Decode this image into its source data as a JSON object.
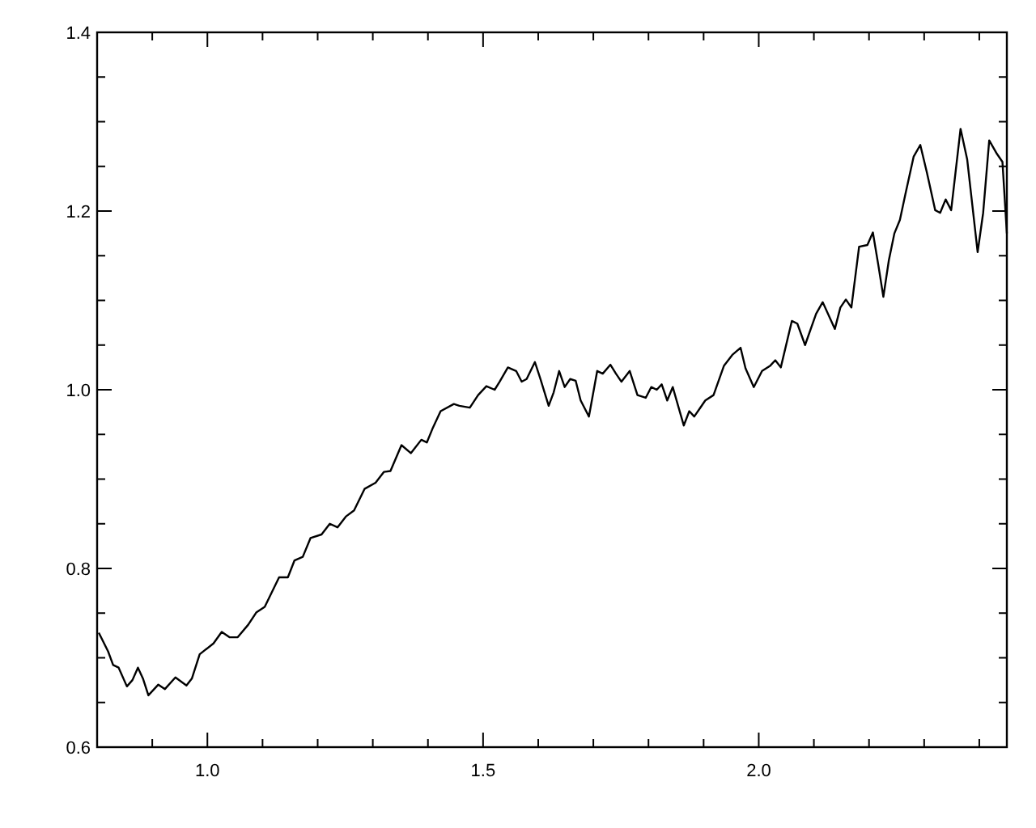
{
  "chart_data": {
    "type": "line",
    "xlim": [
      0.8,
      2.45
    ],
    "ylim": [
      0.6,
      1.4
    ],
    "xticks": [
      {
        "value": 0.9,
        "label": null
      },
      {
        "value": 1,
        "label": "1.0"
      },
      {
        "value": 1.1,
        "label": null
      },
      {
        "value": 1.2,
        "label": null
      },
      {
        "value": 1.3,
        "label": null
      },
      {
        "value": 1.4,
        "label": null
      },
      {
        "value": 1.5,
        "label": "1.5"
      },
      {
        "value": 1.6,
        "label": null
      },
      {
        "value": 1.7,
        "label": null
      },
      {
        "value": 1.8,
        "label": null
      },
      {
        "value": 1.9,
        "label": null
      },
      {
        "value": 2,
        "label": "2.0"
      },
      {
        "value": 2.1,
        "label": null
      },
      {
        "value": 2.2,
        "label": null
      },
      {
        "value": 2.3,
        "label": null
      },
      {
        "value": 2.4,
        "label": null
      }
    ],
    "yticks": [
      {
        "value": 0.6,
        "label": "0.6"
      },
      {
        "value": 0.65,
        "label": null
      },
      {
        "value": 0.7,
        "label": null
      },
      {
        "value": 0.75,
        "label": null
      },
      {
        "value": 0.8,
        "label": "0.8"
      },
      {
        "value": 0.85,
        "label": null
      },
      {
        "value": 0.9,
        "label": null
      },
      {
        "value": 0.95,
        "label": null
      },
      {
        "value": 1,
        "label": "1.0"
      },
      {
        "value": 1.05,
        "label": null
      },
      {
        "value": 1.1,
        "label": null
      },
      {
        "value": 1.15,
        "label": null
      },
      {
        "value": 1.2,
        "label": "1.2"
      },
      {
        "value": 1.25,
        "label": null
      },
      {
        "value": 1.3,
        "label": null
      },
      {
        "value": 1.35,
        "label": null
      },
      {
        "value": 1.4,
        "label": "1.4"
      }
    ],
    "grid": false,
    "marker": "none",
    "line_style": "solid",
    "series": [
      {
        "color": "#000000",
        "x": [
          0.803,
          0.82,
          0.829,
          0.839,
          0.854,
          0.864,
          0.874,
          0.883,
          0.893,
          0.911,
          0.923,
          0.942,
          0.962,
          0.972,
          0.986,
          1.011,
          1.026,
          1.04,
          1.055,
          1.074,
          1.089,
          1.104,
          1.13,
          1.146,
          1.158,
          1.173,
          1.187,
          1.207,
          1.222,
          1.236,
          1.251,
          1.266,
          1.285,
          1.305,
          1.32,
          1.332,
          1.352,
          1.369,
          1.388,
          1.398,
          1.408,
          1.423,
          1.447,
          1.457,
          1.476,
          1.491,
          1.506,
          1.521,
          1.53,
          1.545,
          1.56,
          1.57,
          1.579,
          1.594,
          1.604,
          1.619,
          1.628,
          1.638,
          1.648,
          1.658,
          1.668,
          1.677,
          1.692,
          1.707,
          1.717,
          1.731,
          1.741,
          1.751,
          1.766,
          1.78,
          1.795,
          1.805,
          1.815,
          1.824,
          1.834,
          1.844,
          1.864,
          1.874,
          1.883,
          1.893,
          1.903,
          1.918,
          1.937,
          1.952,
          1.967,
          1.976,
          1.991,
          2.006,
          2.021,
          2.03,
          2.04,
          2.06,
          2.07,
          2.084,
          2.104,
          2.116,
          2.138,
          2.148,
          2.158,
          2.168,
          2.182,
          2.197,
          2.207,
          2.217,
          2.226,
          2.236,
          2.246,
          2.256,
          2.266,
          2.281,
          2.293,
          2.305,
          2.32,
          2.329,
          2.339,
          2.349,
          2.366,
          2.378,
          2.397,
          2.407,
          2.418,
          2.432,
          2.442,
          2.45
        ],
        "values": [
          0.728,
          0.707,
          0.692,
          0.689,
          0.668,
          0.675,
          0.689,
          0.677,
          0.658,
          0.67,
          0.665,
          0.678,
          0.669,
          0.677,
          0.704,
          0.716,
          0.729,
          0.723,
          0.723,
          0.737,
          0.751,
          0.757,
          0.79,
          0.79,
          0.809,
          0.813,
          0.834,
          0.838,
          0.85,
          0.846,
          0.858,
          0.865,
          0.889,
          0.896,
          0.908,
          0.909,
          0.938,
          0.929,
          0.944,
          0.941,
          0.956,
          0.976,
          0.984,
          0.982,
          0.98,
          0.994,
          1.004,
          1.0,
          1.009,
          1.025,
          1.021,
          1.009,
          1.012,
          1.031,
          1.012,
          0.982,
          0.997,
          1.021,
          1.003,
          1.012,
          1.01,
          0.988,
          0.97,
          1.021,
          1.018,
          1.028,
          1.018,
          1.009,
          1.021,
          0.994,
          0.991,
          1.003,
          1.0,
          1.006,
          0.988,
          1.003,
          0.96,
          0.976,
          0.97,
          0.979,
          0.988,
          0.994,
          1.027,
          1.039,
          1.047,
          1.024,
          1.003,
          1.021,
          1.027,
          1.033,
          1.025,
          1.077,
          1.074,
          1.05,
          1.085,
          1.098,
          1.068,
          1.092,
          1.101,
          1.092,
          1.16,
          1.162,
          1.176,
          1.139,
          1.104,
          1.145,
          1.175,
          1.19,
          1.219,
          1.261,
          1.274,
          1.243,
          1.201,
          1.198,
          1.213,
          1.201,
          1.292,
          1.258,
          1.154,
          1.198,
          1.279,
          1.264,
          1.255,
          1.175
        ]
      }
    ]
  }
}
